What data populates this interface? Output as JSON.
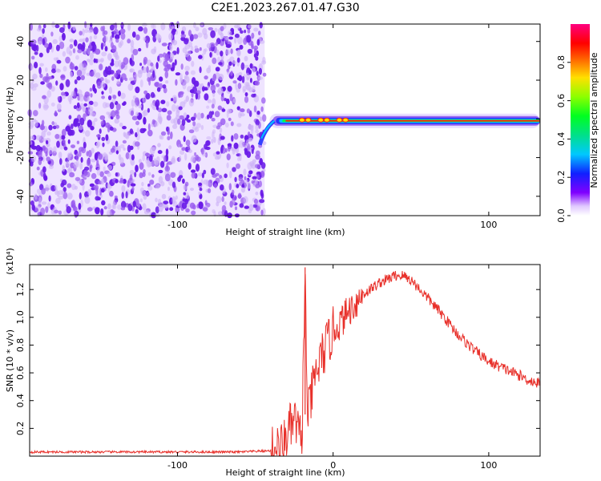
{
  "title": "C2E1.2023.267.01.47.G30",
  "chart_data": [
    {
      "type": "heatmap",
      "title": "C2E1.2023.267.01.47.G30",
      "xlabel": "Height of straight line (km)",
      "ylabel": "Frequency (Hz)",
      "xlim": [
        -195,
        133
      ],
      "ylim": [
        -50,
        49
      ],
      "x_ticks": [
        -100,
        0,
        100
      ],
      "x_tick_labels": [
        "-100",
        "",
        "100"
      ],
      "y_ticks": [
        -40,
        -20,
        0,
        20,
        40
      ],
      "y_tick_labels": [
        "-40",
        "-20",
        "0",
        "20",
        "40"
      ],
      "colorbar": {
        "label": "Normalized spectral amplitude",
        "range": [
          0,
          1
        ],
        "ticks": [
          0.0,
          0.2,
          0.4,
          0.6,
          0.8
        ],
        "tick_labels": [
          "0.0",
          "0.2",
          "0.4",
          "0.6",
          "0.8"
        ],
        "colormap": "rainbow"
      },
      "features": [
        {
          "region": "noise",
          "x_range": [
            -195,
            -44
          ],
          "y_range": [
            -50,
            49
          ],
          "amplitude": [
            0.0,
            0.25
          ]
        },
        {
          "region": "signal-band",
          "x_range": [
            -44,
            133
          ],
          "center_frequency": -1,
          "amplitude": [
            0.5,
            1.0
          ]
        }
      ]
    },
    {
      "type": "line",
      "title": "",
      "xlabel": "Height of straight line (km)",
      "ylabel": "SNR (10 * v/v)",
      "y_scale_label": "(x10⁴)",
      "xlim": [
        -195,
        133
      ],
      "ylim": [
        0,
        1.38
      ],
      "x_ticks": [
        -100,
        0,
        100
      ],
      "x_tick_labels": [
        "-100",
        "0",
        "100"
      ],
      "y_ticks": [
        0.2,
        0.4,
        0.6,
        0.8,
        1.0,
        1.2
      ],
      "y_tick_labels": [
        "0.2",
        "0.4",
        "0.6",
        "0.8",
        "1.0",
        "1.2"
      ],
      "color": "#e8302a",
      "x": [
        -195,
        -150,
        -100,
        -60,
        -38,
        -32,
        -28,
        -24,
        -22,
        -20,
        -18,
        -17,
        -16,
        -12,
        -8,
        -4,
        0,
        4,
        10,
        20,
        30,
        40,
        45,
        50,
        60,
        70,
        80,
        90,
        100,
        110,
        120,
        125,
        133
      ],
      "values": [
        0.03,
        0.03,
        0.03,
        0.03,
        0.04,
        0.08,
        0.2,
        0.25,
        0.15,
        0.12,
        1.36,
        0.5,
        0.3,
        0.55,
        0.7,
        0.8,
        0.9,
        0.95,
        1.05,
        1.17,
        1.25,
        1.3,
        1.3,
        1.27,
        1.15,
        1.02,
        0.88,
        0.77,
        0.68,
        0.63,
        0.58,
        0.55,
        0.52
      ]
    }
  ]
}
